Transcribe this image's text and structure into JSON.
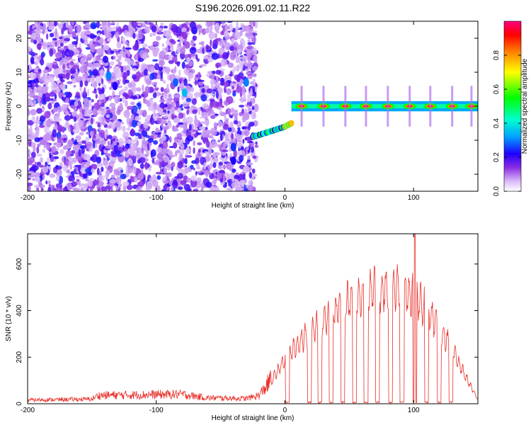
{
  "title": "S196.2026.091.02.11.R22",
  "chart_data": [
    {
      "type": "heatmap",
      "xlabel": "Height of straight line (km)",
      "ylabel": "Frequency (Hz)",
      "xlim": [
        -200,
        150
      ],
      "ylim": [
        -25,
        25
      ],
      "xticks": [
        -200,
        -100,
        0,
        100
      ],
      "yticks": [
        -20,
        -10,
        0,
        10,
        20
      ],
      "xtick_labels": [
        "-200",
        "-100",
        "0",
        "100"
      ],
      "ytick_labels": [
        "-20",
        "-10",
        "0",
        "10",
        "20"
      ],
      "colorbar": {
        "label": "Normalized spectral amplitude",
        "range": [
          0,
          1
        ],
        "ticks": [
          0,
          0.2,
          0.4,
          0.6,
          0.8
        ],
        "tick_labels": [
          "0.0",
          "0.2",
          "0.4",
          "0.6",
          "0.8"
        ],
        "colors": [
          "#ffffff",
          "#d8b8f8",
          "#8a2be2",
          "#4b00ff",
          "#0000ff",
          "#00bfff",
          "#00ffd0",
          "#00ff00",
          "#ffff00",
          "#ff8000",
          "#ff0000",
          "#ff0080"
        ]
      },
      "features": {
        "tone_line_start_km": 5,
        "tone_frequency_hz": 0,
        "tone_peaks_km": [
          13,
          30,
          47,
          63,
          80,
          97,
          113,
          130,
          145
        ],
        "ramp": [
          [
            -25,
            -9
          ],
          [
            -12,
            -7.5
          ],
          [
            0,
            -6
          ],
          [
            5,
            -5
          ]
        ],
        "noise_region_km": [
          -200,
          -25
        ]
      }
    },
    {
      "type": "line",
      "xlabel": "Height of straight line (km)",
      "ylabel": "SNR (10 * v/v)",
      "xlim": [
        -200,
        150
      ],
      "ylim": [
        0,
        730
      ],
      "xticks": [
        -200,
        -100,
        0,
        100
      ],
      "yticks": [
        0,
        200,
        400,
        600
      ],
      "xtick_labels": [
        "-200",
        "-100",
        "0",
        "100"
      ],
      "ytick_labels": [
        "0",
        "200",
        "400",
        "600"
      ],
      "color": "#e8302a",
      "envelope": [
        [
          -200,
          18
        ],
        [
          -150,
          22
        ],
        [
          -145,
          40
        ],
        [
          -80,
          45
        ],
        [
          -60,
          28
        ],
        [
          -30,
          25
        ],
        [
          -20,
          40
        ],
        [
          -10,
          120
        ],
        [
          0,
          220
        ],
        [
          10,
          300
        ],
        [
          20,
          360
        ],
        [
          30,
          420
        ],
        [
          40,
          470
        ],
        [
          50,
          510
        ],
        [
          60,
          545
        ],
        [
          70,
          570
        ],
        [
          80,
          580
        ],
        [
          90,
          575
        ],
        [
          100,
          540
        ],
        [
          110,
          470
        ],
        [
          120,
          380
        ],
        [
          130,
          270
        ],
        [
          140,
          140
        ],
        [
          150,
          20
        ]
      ],
      "dropouts_km": [
        2,
        19,
        27,
        36,
        45,
        54,
        63,
        72,
        82,
        91,
        101,
        110,
        120,
        129
      ],
      "spike": {
        "x": 101,
        "y": 730
      }
    }
  ]
}
